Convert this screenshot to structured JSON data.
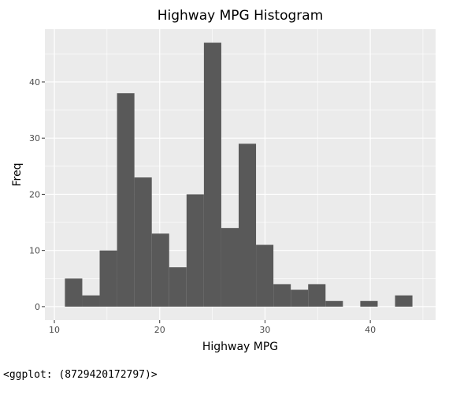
{
  "chart_data": {
    "type": "bar",
    "title": "Highway MPG Histogram",
    "xlabel": "Highway MPG",
    "ylabel": "Freq",
    "bin_width": 1.65,
    "bins": [
      {
        "x0": 11.0,
        "count": 5
      },
      {
        "x0": 12.65,
        "count": 2
      },
      {
        "x0": 14.3,
        "count": 10
      },
      {
        "x0": 15.95,
        "count": 38
      },
      {
        "x0": 17.6,
        "count": 23
      },
      {
        "x0": 19.25,
        "count": 13
      },
      {
        "x0": 20.9,
        "count": 7
      },
      {
        "x0": 22.55,
        "count": 20
      },
      {
        "x0": 24.2,
        "count": 47
      },
      {
        "x0": 25.85,
        "count": 14
      },
      {
        "x0": 27.5,
        "count": 29
      },
      {
        "x0": 29.15,
        "count": 11
      },
      {
        "x0": 30.8,
        "count": 4
      },
      {
        "x0": 32.45,
        "count": 3
      },
      {
        "x0": 34.1,
        "count": 4
      },
      {
        "x0": 35.75,
        "count": 1
      },
      {
        "x0": 37.4,
        "count": 0
      },
      {
        "x0": 39.05,
        "count": 1
      },
      {
        "x0": 40.7,
        "count": 0
      },
      {
        "x0": 42.35,
        "count": 2
      }
    ],
    "xlim": [
      9.1,
      46.2
    ],
    "ylim": [
      -2.4,
      49.4
    ],
    "x_ticks": [
      10,
      20,
      30,
      40
    ],
    "y_ticks": [
      0,
      10,
      20,
      30,
      40
    ],
    "grid": true,
    "panel_color": "#ebebeb",
    "bar_color": "#595959",
    "grid_color": "#ffffff"
  },
  "console_output": "<ggplot: (8729420172797)>"
}
